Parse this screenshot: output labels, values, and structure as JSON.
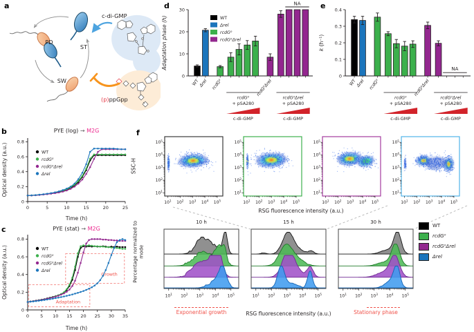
{
  "panel_letters": {
    "a": "a",
    "b": "b",
    "c": "c",
    "d": "d",
    "e": "e",
    "f": "f"
  },
  "strains": {
    "wt": "WT",
    "rel": "Δrel",
    "rcdg": "rcdG⁰",
    "rcdgrel": "rcdG⁰Δrel"
  },
  "colors": {
    "wt": "#000000",
    "rel": "#1b75bc",
    "rcdg": "#3cb04c",
    "rcdgrel": "#93278f",
    "na_red": "#d2232a",
    "accent_pink": "#ec268d",
    "annot_red": "#f0524a",
    "box_red": "#f4827e"
  },
  "panel_a": {
    "pd": "PD",
    "st": "ST",
    "sw": "SW",
    "cdigmp": "c-di-GMP",
    "ppgpp_p": "(p)",
    "ppgpp_rest": "ppGpp"
  },
  "panel_f": {
    "rsg_top": "RSG fluorescence intensity (a.u.)",
    "rsg_bottom": "RSG fluorescence intensity (a.u.)",
    "ssch": "SSC-H",
    "pct": "Percentage normalized to mode",
    "exp_growth": "Exponential growth",
    "stationary": "Stationary phase"
  },
  "chart_data": [
    {
      "id": "chart-b",
      "type": "line",
      "title": [
        {
          "t": "PYE (log) ",
          "c": "#231f20"
        },
        {
          "t": "→",
          "c": "#58595b"
        },
        {
          "t": " M2G",
          "c": "#ec268d"
        }
      ],
      "xlabel": "Time (h)",
      "ylabel": "Optical density (a.u.)",
      "xlim": [
        0,
        25
      ],
      "ylim": [
        0,
        0.85
      ],
      "xticks": [
        0,
        5,
        10,
        15,
        20,
        25
      ],
      "yticks": [
        0,
        0.2,
        0.4,
        0.6,
        0.8
      ],
      "x": [
        0,
        1,
        2,
        3,
        4,
        5,
        6,
        7,
        8,
        9,
        10,
        11,
        12,
        13,
        14,
        15,
        16,
        17,
        18,
        19,
        20,
        21,
        22,
        23,
        24,
        25
      ],
      "series": [
        {
          "key": "wt",
          "values": [
            0.08,
            0.082,
            0.085,
            0.09,
            0.095,
            0.1,
            0.107,
            0.115,
            0.125,
            0.14,
            0.155,
            0.18,
            0.215,
            0.26,
            0.33,
            0.42,
            0.55,
            0.62,
            0.62,
            0.62,
            0.62,
            0.62,
            0.62,
            0.62,
            0.62,
            0.62
          ]
        },
        {
          "key": "rcdg",
          "values": [
            0.08,
            0.082,
            0.086,
            0.091,
            0.096,
            0.102,
            0.11,
            0.118,
            0.13,
            0.145,
            0.162,
            0.19,
            0.225,
            0.275,
            0.345,
            0.44,
            0.575,
            0.63,
            0.63,
            0.63,
            0.63,
            0.63,
            0.63,
            0.63,
            0.63,
            0.63
          ]
        },
        {
          "key": "rcdgrel",
          "values": [
            0.08,
            0.081,
            0.084,
            0.088,
            0.093,
            0.099,
            0.105,
            0.112,
            0.121,
            0.133,
            0.148,
            0.17,
            0.2,
            0.24,
            0.295,
            0.37,
            0.46,
            0.57,
            0.665,
            0.7,
            0.7,
            0.7,
            0.7,
            0.7,
            0.7,
            0.7
          ]
        },
        {
          "key": "rel",
          "values": [
            0.08,
            0.083,
            0.087,
            0.092,
            0.098,
            0.105,
            0.113,
            0.124,
            0.137,
            0.153,
            0.173,
            0.2,
            0.24,
            0.3,
            0.385,
            0.5,
            0.665,
            0.71,
            0.71,
            0.71,
            0.71,
            0.71,
            0.71,
            0.705,
            0.7,
            0.7
          ]
        }
      ],
      "legend": [
        "wt",
        "rcdg",
        "rcdgrel",
        "rel"
      ]
    },
    {
      "id": "chart-c",
      "type": "line",
      "title": [
        {
          "t": "PYE (stat) ",
          "c": "#231f20"
        },
        {
          "t": "→",
          "c": "#58595b"
        },
        {
          "t": " M2G",
          "c": "#ec268d"
        }
      ],
      "xlabel": "Time (h)",
      "ylabel": "Optical density (a.u.)",
      "xlim": [
        0,
        35
      ],
      "ylim": [
        0,
        0.85
      ],
      "xticks": [
        0,
        5,
        10,
        15,
        20,
        25,
        30,
        35
      ],
      "yticks": [
        0,
        0.2,
        0.4,
        0.6,
        0.8
      ],
      "x": [
        0,
        1,
        2,
        3,
        4,
        5,
        6,
        7,
        8,
        9,
        10,
        11,
        12,
        13,
        14,
        15,
        16,
        17,
        18,
        19,
        20,
        21,
        22,
        23,
        24,
        25,
        26,
        27,
        28,
        29,
        30,
        31,
        32,
        33,
        34,
        35
      ],
      "series": [
        {
          "key": "wt",
          "values": [
            0.09,
            0.095,
            0.1,
            0.105,
            0.11,
            0.116,
            0.122,
            0.13,
            0.138,
            0.147,
            0.156,
            0.166,
            0.178,
            0.196,
            0.225,
            0.27,
            0.34,
            0.45,
            0.6,
            0.7,
            0.72,
            0.715,
            0.72,
            0.715,
            0.72,
            0.715,
            0.715,
            0.72,
            0.715,
            0.71,
            0.715,
            0.71,
            0.715,
            0.71,
            0.71,
            0.71
          ]
        },
        {
          "key": "rcdg",
          "values": [
            0.09,
            0.094,
            0.099,
            0.104,
            0.109,
            0.115,
            0.121,
            0.128,
            0.136,
            0.145,
            0.155,
            0.166,
            0.18,
            0.2,
            0.235,
            0.285,
            0.365,
            0.49,
            0.64,
            0.72,
            0.73,
            0.725,
            0.73,
            0.725,
            0.72,
            0.72,
            0.715,
            0.715,
            0.71,
            0.71,
            0.705,
            0.7,
            0.7,
            0.695,
            0.69,
            0.69
          ]
        },
        {
          "key": "rcdgrel",
          "values": [
            0.09,
            0.094,
            0.098,
            0.103,
            0.108,
            0.113,
            0.119,
            0.126,
            0.133,
            0.141,
            0.15,
            0.16,
            0.172,
            0.186,
            0.205,
            0.23,
            0.27,
            0.33,
            0.42,
            0.53,
            0.65,
            0.75,
            0.79,
            0.8,
            0.8,
            0.8,
            0.8,
            0.795,
            0.795,
            0.79,
            0.79,
            0.785,
            0.785,
            0.78,
            0.78,
            0.78
          ]
        },
        {
          "key": "rel",
          "values": [
            0.09,
            0.093,
            0.096,
            0.1,
            0.104,
            0.108,
            0.112,
            0.117,
            0.122,
            0.127,
            0.133,
            0.139,
            0.145,
            0.152,
            0.159,
            0.167,
            0.175,
            0.184,
            0.193,
            0.203,
            0.214,
            0.226,
            0.24,
            0.256,
            0.275,
            0.3,
            0.335,
            0.385,
            0.45,
            0.53,
            0.62,
            0.7,
            0.765,
            0.79,
            0.8,
            0.79
          ]
        }
      ],
      "legend": [
        "wt",
        "rcdg",
        "rcdgrel",
        "rel"
      ],
      "annotations": {
        "boxes": [
          [
            0.4,
            0.035,
            22.3,
            0.285
          ],
          [
            13.6,
            0.3,
            34.7,
            0.635
          ]
        ],
        "labels": [
          {
            "t": "Adaptation",
            "x": 14.5,
            "y": 0.075
          },
          {
            "t": "Growth",
            "x": 29.3,
            "y": 0.385
          }
        ]
      }
    },
    {
      "id": "chart-d",
      "type": "bar",
      "ylabel_parts": [
        {
          "t": "Adaptation phase (h)",
          "i": true
        }
      ],
      "ylim": [
        0,
        30
      ],
      "yticks": [
        0,
        10,
        20,
        30
      ],
      "values": [
        4.5,
        20.7,
        4.2,
        8.5,
        12,
        14,
        15.8,
        8.5,
        28,
        30,
        30,
        30
      ],
      "errors": [
        0.5,
        0.7,
        0.5,
        2,
        2.5,
        2,
        2.2,
        1.5,
        1.5,
        0,
        0,
        0
      ],
      "bar_keys": [
        "wt",
        "rel",
        "rcdg",
        "rcdg",
        "rcdg",
        "rcdg",
        "rcdg",
        "rcdgrel",
        "rcdgrel",
        "rcdgrel",
        "rcdgrel",
        "rcdgrel"
      ],
      "tick_keys": [
        "wt",
        "rel",
        "rcdg",
        "",
        "",
        "",
        "",
        "rcdgrel",
        "",
        "",
        "",
        ""
      ],
      "groups": [
        {
          "l1_key": "rcdg",
          "l2": "+ pSA280",
          "from": 3,
          "to": 6,
          "tri_label": "c-di-GMP"
        },
        {
          "l1_key": "rcdgrel",
          "l2": "+ pSA280",
          "from": 8,
          "to": 11,
          "tri_label": "c-di-GMP"
        }
      ],
      "na": {
        "label": "NA",
        "from": 9,
        "to": 11,
        "pos": "top"
      },
      "legend": [
        "wt",
        "rel",
        "rcdg",
        "rcdgrel"
      ]
    },
    {
      "id": "chart-e",
      "type": "bar",
      "ylabel_parts": [
        {
          "t": "k",
          "i": true
        },
        {
          "t": " (h⁻¹)",
          "i": false
        }
      ],
      "ylim": [
        0,
        0.4
      ],
      "yticks": [
        0,
        0.1,
        0.2,
        0.3,
        0.4
      ],
      "values": [
        0.34,
        0.335,
        0.355,
        0.255,
        0.195,
        0.18,
        0.192,
        0.305,
        0.197,
        null,
        null,
        null
      ],
      "errors": [
        0.02,
        0.025,
        0.025,
        0.012,
        0.025,
        0.028,
        0.02,
        0.02,
        0.015,
        0,
        0,
        0
      ],
      "bar_keys": [
        "wt",
        "rel",
        "rcdg",
        "rcdg",
        "rcdg",
        "rcdg",
        "rcdg",
        "rcdgrel",
        "rcdgrel",
        "rcdgrel",
        "rcdgrel",
        "rcdgrel"
      ],
      "tick_keys": [
        "wt",
        "rel",
        "rcdg",
        "",
        "",
        "",
        "",
        "rcdgrel",
        "",
        "",
        "",
        ""
      ],
      "groups": [
        {
          "l1_key": "rcdg",
          "l2": "+ pSA280",
          "from": 3,
          "to": 6,
          "tri_label": "c-di-GMP"
        },
        {
          "l1_key": "rcdgrel",
          "l2": "+ pSA280",
          "from": 8,
          "to": 11,
          "tri_label": "c-di-GMP"
        }
      ],
      "na": {
        "label": "NA",
        "from": 9,
        "to": 11,
        "pos": "bottom"
      }
    },
    {
      "id": "scatter-row",
      "type": "scatter-density",
      "ylabel": "SSC-H",
      "tick_exps": [
        1,
        2,
        3,
        4,
        5
      ],
      "plots": [
        {
          "key": "wt",
          "border": "#3a3a3a",
          "blobs": [
            {
              "cx": 3.05,
              "cy": 3.55,
              "rx": 1.2,
              "ry": 0.5,
              "rot": -4,
              "lv": 5,
              "dots": 380
            },
            {
              "cx": 1.06,
              "cy": 3.35,
              "rx": 0.07,
              "ry": 0.5,
              "rot": 0,
              "lv": 2,
              "dots": 90
            }
          ]
        },
        {
          "key": "rcdg",
          "border": "#3cb04c",
          "blobs": [
            {
              "cx": 3.0,
              "cy": 3.6,
              "rx": 1.25,
              "ry": 0.55,
              "rot": -4,
              "lv": 5,
              "dots": 400
            },
            {
              "cx": 1.06,
              "cy": 3.5,
              "rx": 0.07,
              "ry": 0.45,
              "rot": 0,
              "lv": 4,
              "dots": 90
            }
          ]
        },
        {
          "key": "rcdgrel",
          "border": "#a43a9e",
          "blobs": [
            {
              "cx": 2.95,
              "cy": 3.7,
              "rx": 1.0,
              "ry": 0.5,
              "rot": -5,
              "lv": 5,
              "dots": 340
            },
            {
              "cx": 4.25,
              "cy": 3.5,
              "rx": 0.7,
              "ry": 0.42,
              "rot": -14,
              "lv": 3,
              "dots": 160
            }
          ]
        },
        {
          "key": "rel",
          "border": "#4fb3ea",
          "blobs": [
            {
              "cx": 2.55,
              "cy": 3.55,
              "rx": 0.6,
              "ry": 0.4,
              "rot": -5,
              "lv": 5,
              "dots": 240
            },
            {
              "cx": 4.58,
              "cy": 3.28,
              "rx": 0.4,
              "ry": 0.55,
              "rot": 8,
              "lv": 5,
              "dots": 200
            },
            {
              "cx": 3.55,
              "cy": 3.35,
              "rx": 0.85,
              "ry": 0.5,
              "rot": -8,
              "lv": 1,
              "dots": 200
            },
            {
              "cx": 1.06,
              "cy": 3.3,
              "rx": 0.07,
              "ry": 0.4,
              "rot": 0,
              "lv": 1,
              "dots": 60
            }
          ]
        }
      ]
    },
    {
      "id": "hist-row",
      "type": "ridge",
      "tick_exps": [
        1,
        2,
        3,
        4,
        5
      ],
      "ridge_keys": [
        "wt",
        "rcdg",
        "rcdgrel",
        "rel"
      ],
      "ridge_fills": {
        "wt": "#7f7f7f",
        "rcdg": "#4db956",
        "rcdgrel": "#a050c8",
        "rel": "#3f9bef"
      },
      "ridge_strokes": {
        "wt": "#111111",
        "rcdg": "#1e7a28",
        "rcdgrel": "#702a94",
        "rel": "#1464b4"
      },
      "panels": [
        {
          "title": "10 h",
          "jitter": 0.1,
          "series": {
            "wt": [
              [
                3.5,
                0.55,
                0.6
              ],
              [
                4.62,
                0.14,
                1.0
              ],
              [
                2.95,
                0.3,
                0.3
              ]
            ],
            "rcdg": [
              [
                3.2,
                0.55,
                0.65
              ],
              [
                4.3,
                0.3,
                0.85
              ],
              [
                4.6,
                0.12,
                0.4
              ]
            ],
            "rcdgrel": [
              [
                3.0,
                0.5,
                0.7
              ],
              [
                3.95,
                0.35,
                0.95
              ],
              [
                4.3,
                0.15,
                0.6
              ]
            ],
            "rel": [
              [
                4.45,
                0.25,
                1.0
              ],
              [
                3.8,
                0.35,
                0.25
              ]
            ]
          }
        },
        {
          "title": "15 h",
          "jitter": 0.04,
          "series": {
            "wt": [
              [
                3.05,
                0.34,
                1.0
              ],
              [
                3.7,
                0.35,
                0.22
              ],
              [
                4.55,
                0.2,
                0.13
              ],
              [
                1.5,
                0.18,
                0.05
              ]
            ],
            "rcdg": [
              [
                2.95,
                0.42,
                1.0
              ],
              [
                3.8,
                0.4,
                0.25
              ]
            ],
            "rcdgrel": [
              [
                3.05,
                0.37,
                1.0
              ],
              [
                3.5,
                0.5,
                0.35
              ],
              [
                4.5,
                0.19,
                0.45
              ]
            ],
            "rel": [
              [
                2.62,
                0.22,
                1.0
              ],
              [
                3.3,
                0.4,
                0.2
              ],
              [
                4.48,
                0.16,
                0.78
              ]
            ]
          }
        },
        {
          "title": "30 h",
          "jitter": 0.03,
          "series": {
            "wt": [
              [
                4.5,
                0.23,
                1.0
              ],
              [
                3.9,
                0.45,
                0.2
              ]
            ],
            "rcdg": [
              [
                4.38,
                0.26,
                1.0
              ],
              [
                3.7,
                0.45,
                0.18
              ]
            ],
            "rcdgrel": [
              [
                4.32,
                0.3,
                1.0
              ],
              [
                3.6,
                0.45,
                0.22
              ]
            ],
            "rel": [
              [
                4.45,
                0.21,
                1.0
              ],
              [
                3.95,
                0.32,
                0.28
              ]
            ]
          }
        }
      ],
      "f_legend": [
        "wt",
        "rcdg",
        "rcdgrel",
        "rel"
      ]
    }
  ]
}
